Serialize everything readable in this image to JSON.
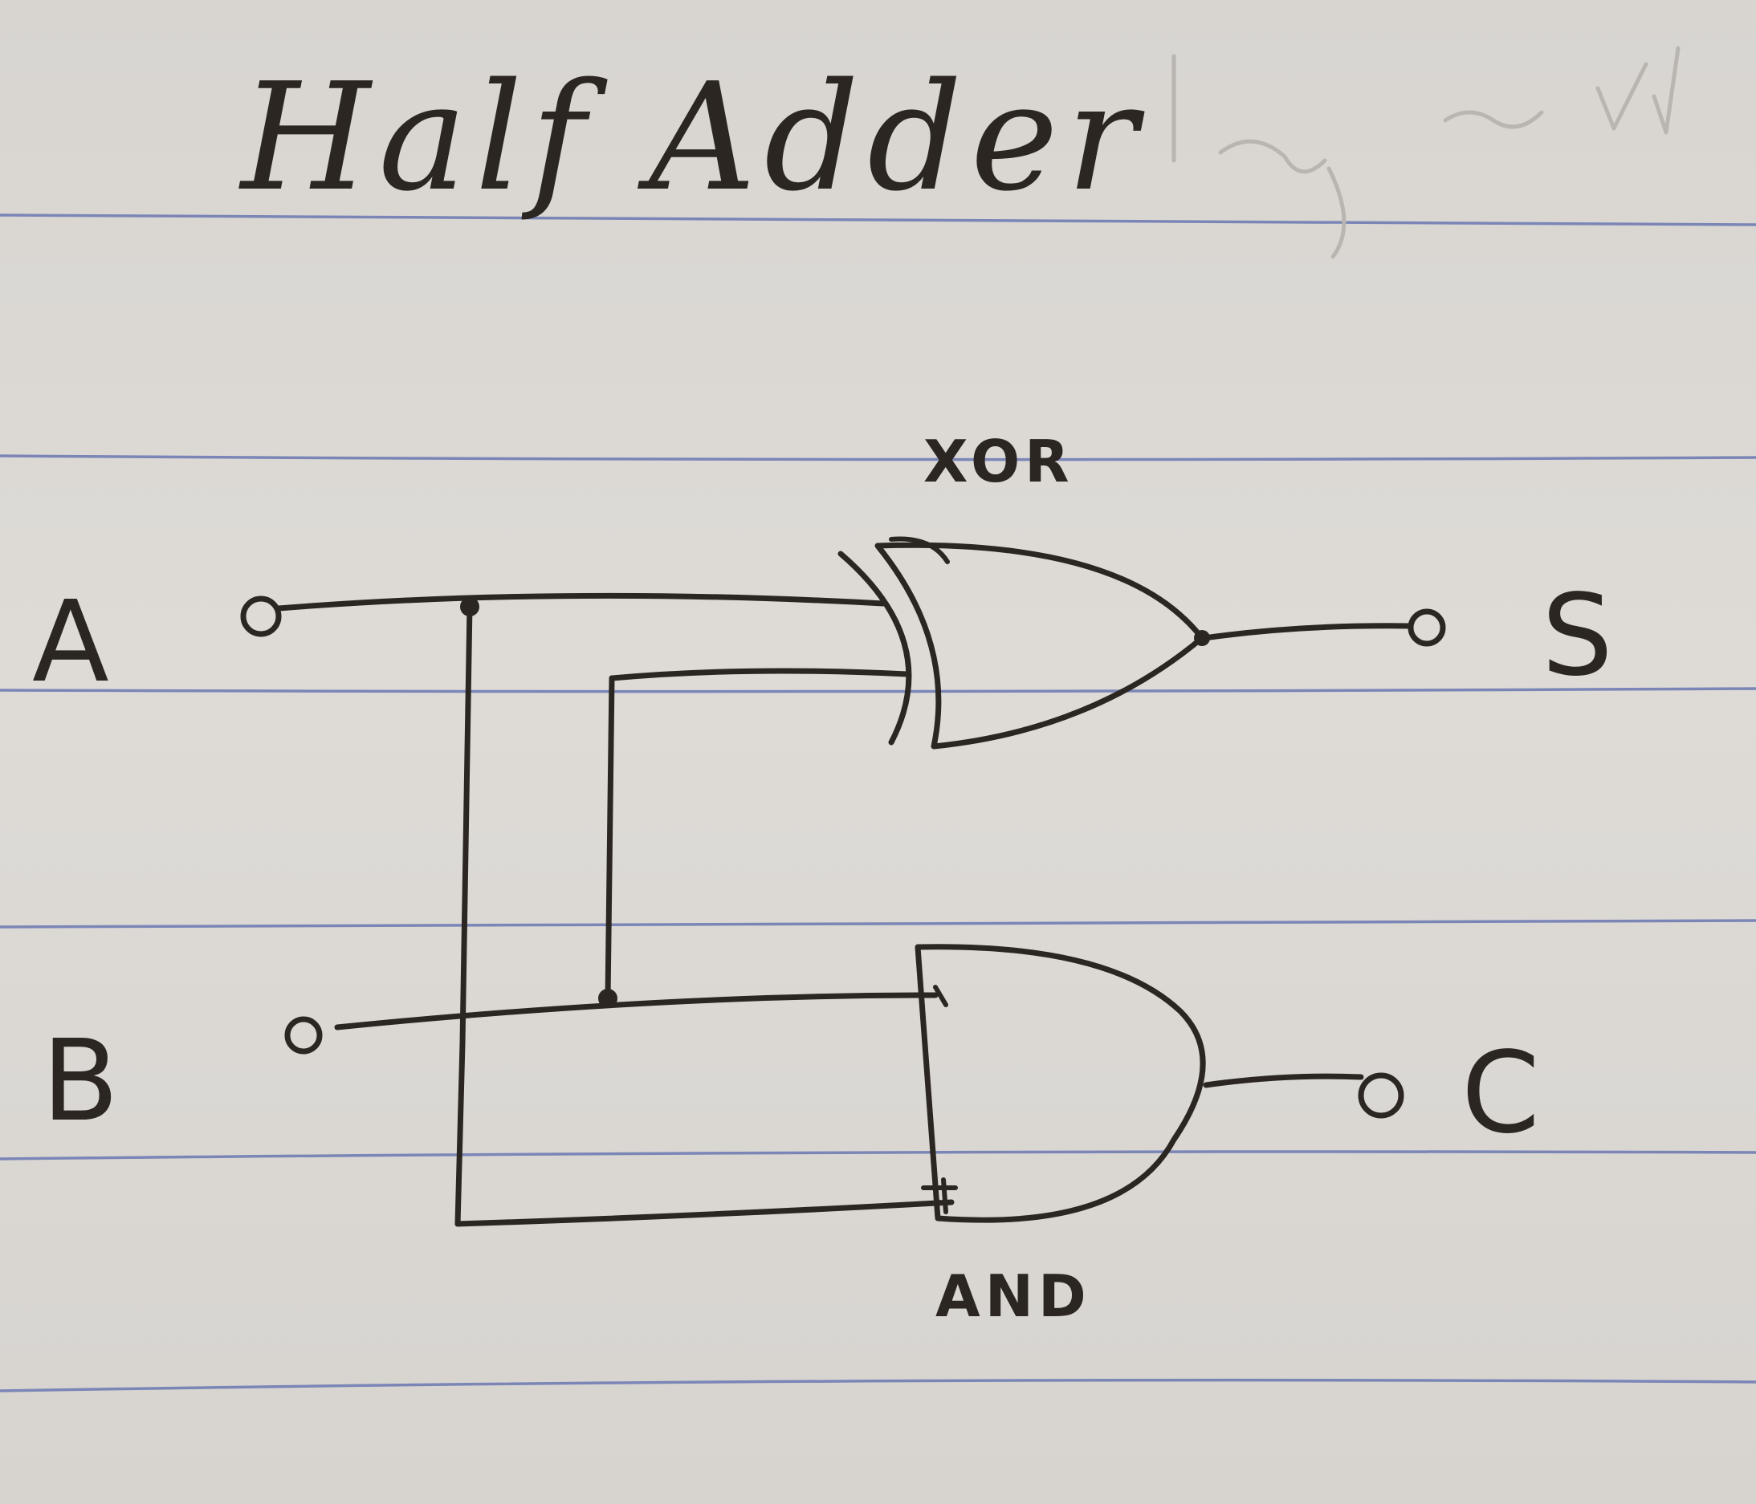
{
  "title": "Half Adder",
  "inputs": [
    {
      "label": "A"
    },
    {
      "label": "B"
    }
  ],
  "outputs": [
    {
      "label": "S"
    },
    {
      "label": "C"
    }
  ],
  "gates": [
    {
      "label": "XOR",
      "type": "xor"
    },
    {
      "label": "AND",
      "type": "and"
    }
  ],
  "colors": {
    "paper": "#dcd9d5",
    "ink": "#2b2622",
    "rule_lines": "#7b86b6"
  }
}
